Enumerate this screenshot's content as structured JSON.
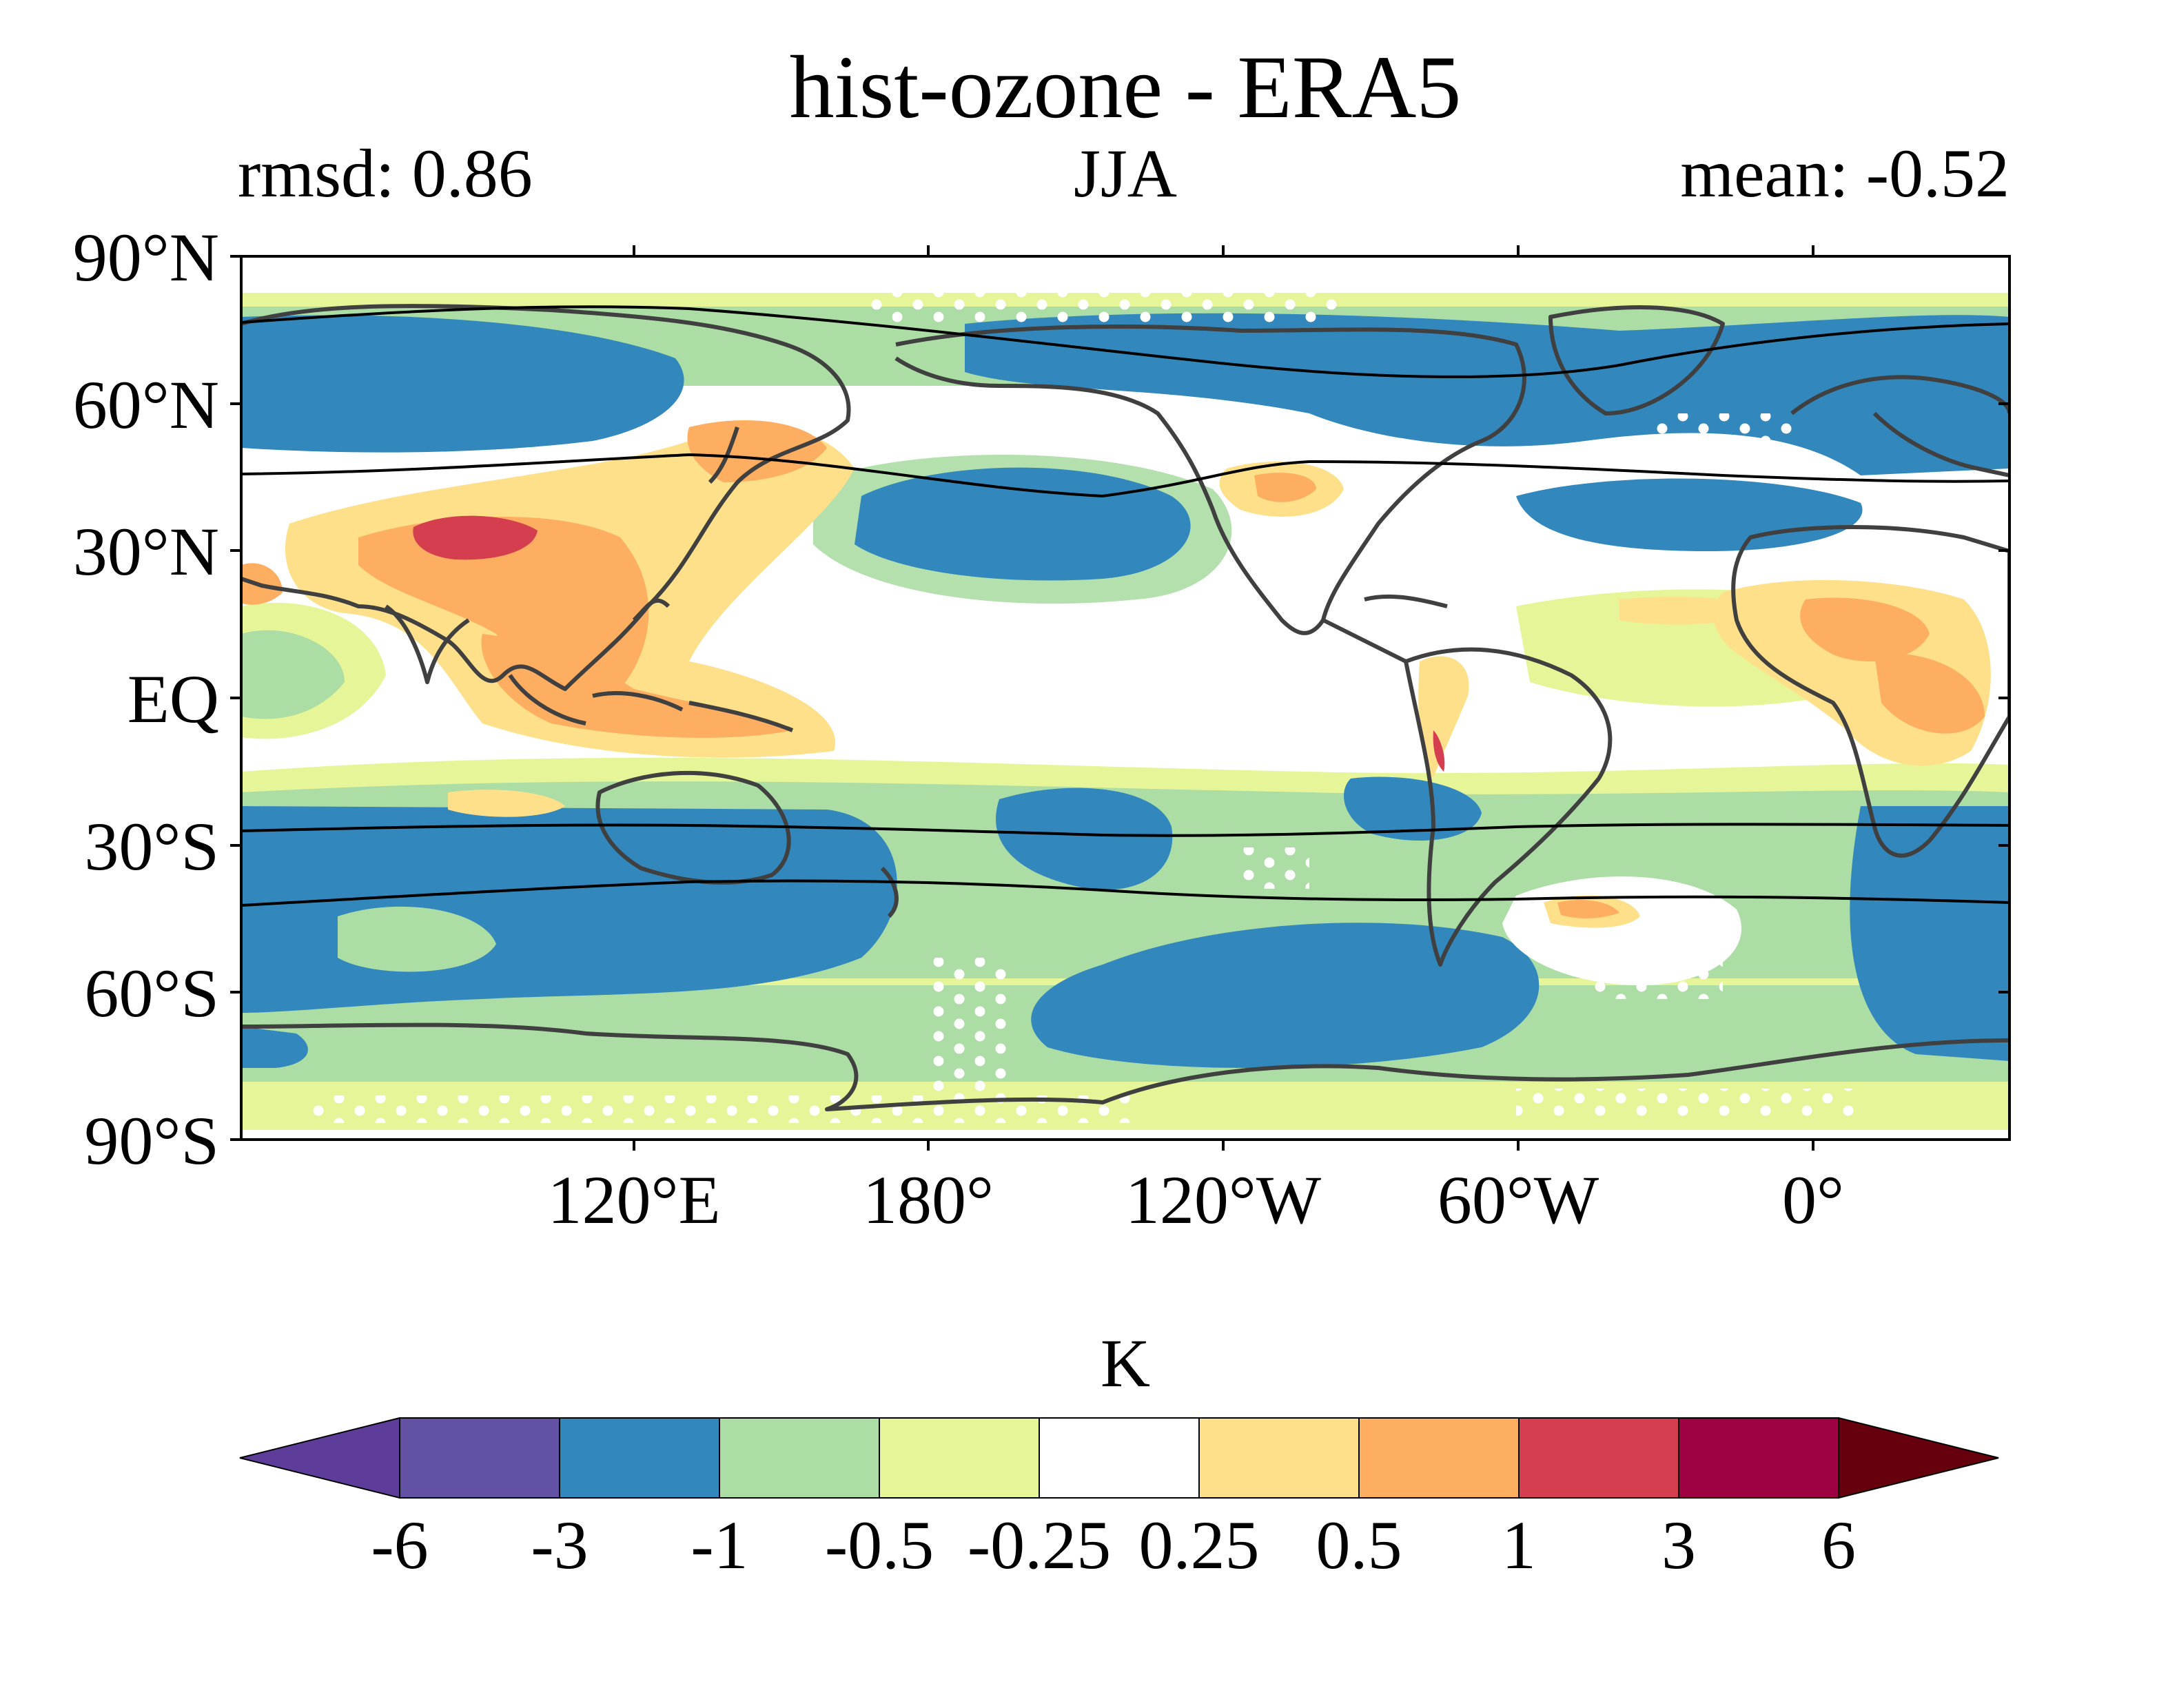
{
  "figure": {
    "title": "hist-ozone - ERA5",
    "left_label": "rmsd: 0.86",
    "center_label": "JJA",
    "right_label": "mean: -0.52"
  },
  "map": {
    "lat_ticks": [
      "90°N",
      "60°N",
      "30°N",
      "EQ",
      "30°S",
      "60°S",
      "90°S"
    ],
    "lon_ticks": [
      "120°E",
      "180°",
      "120°W",
      "60°W",
      "0°"
    ],
    "stippling": "white dots where difference not significant"
  },
  "colorbar": {
    "label": "K",
    "extend": "both",
    "levels": [
      "-6",
      "-3",
      "-1",
      "-0.5",
      "-0.25",
      "0.25",
      "0.5",
      "1",
      "3",
      "6"
    ],
    "colors": [
      "#5e3c99",
      "#6352a3",
      "#3288bd",
      "#abdda4",
      "#e6f598",
      "#ffffff",
      "#fee08b",
      "#fdae61",
      "#d53e4f",
      "#9e0142",
      "#67000d"
    ]
  }
}
